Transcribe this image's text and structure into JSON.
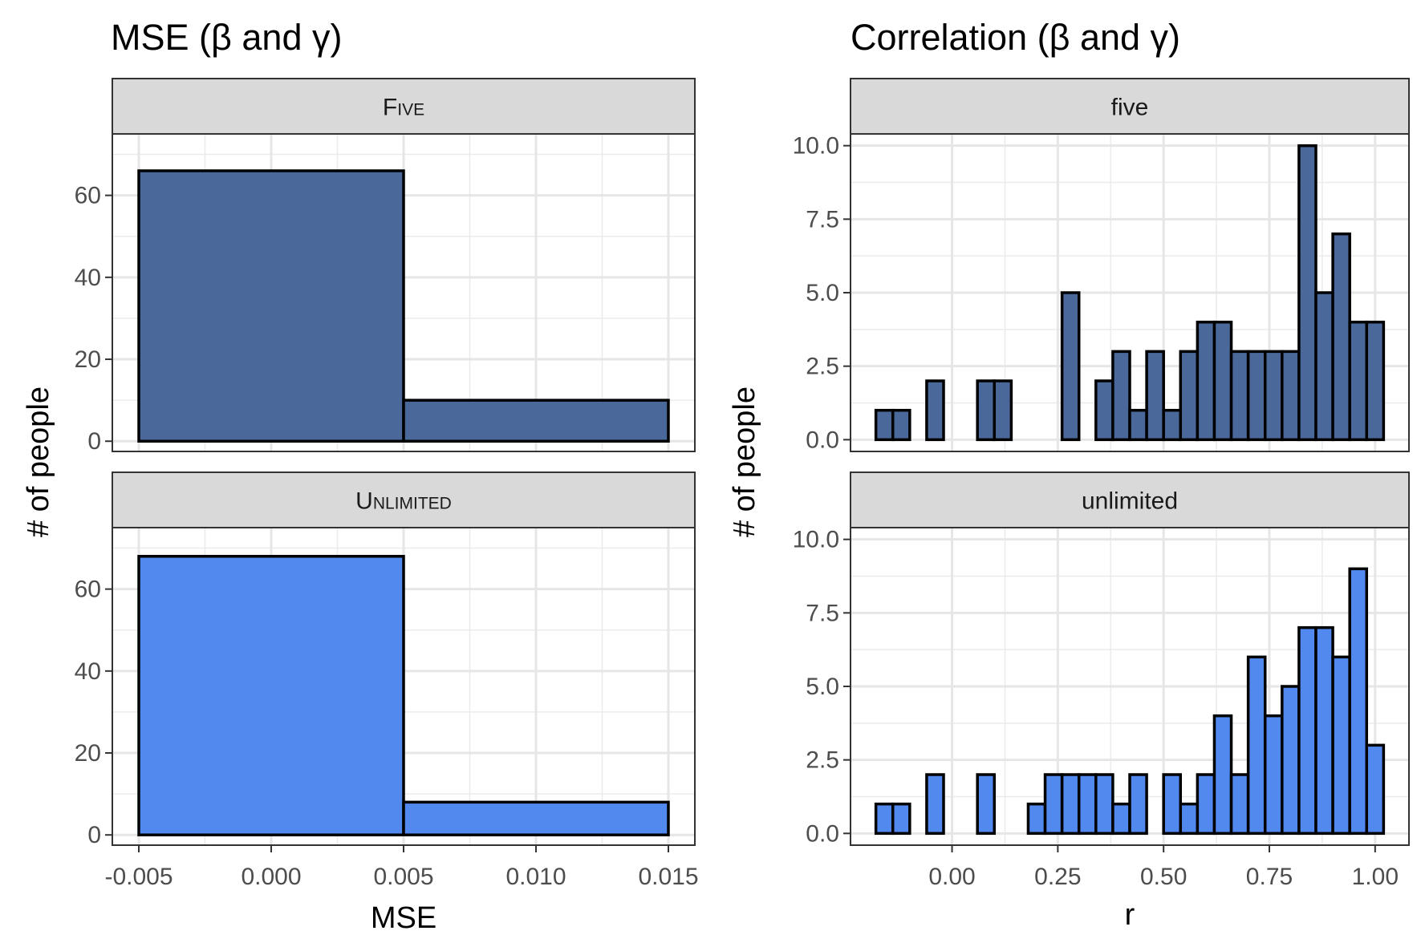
{
  "chart_data": [
    {
      "type": "bar",
      "title": "MSE (β and γ)",
      "xlabel": "MSE",
      "ylabel": "# of people",
      "xlim": [
        -0.006,
        0.016
      ],
      "ylim": [
        -2.5,
        75
      ],
      "x_ticks": [
        -0.005,
        0.0,
        0.005,
        0.01,
        0.015
      ],
      "x_tick_labels": [
        "-0.005",
        "0.000",
        "0.005",
        "0.010",
        "0.015"
      ],
      "y_ticks": [
        0,
        20,
        40,
        60
      ],
      "y_tick_labels": [
        "0",
        "20",
        "40",
        "60"
      ],
      "grid": true,
      "bin_edges": [
        -0.005,
        0.005,
        0.015
      ],
      "facets": [
        {
          "label": "Five",
          "small_caps": true,
          "color": "#4a6899",
          "values": [
            66,
            10
          ]
        },
        {
          "label": "Unlimited",
          "small_caps": true,
          "color": "#5189ee",
          "values": [
            68,
            8
          ]
        }
      ]
    },
    {
      "type": "bar",
      "title": "Correlation (β and γ)",
      "xlabel": "r",
      "ylabel": "# of people",
      "xlim": [
        -0.24,
        1.08
      ],
      "ylim": [
        -0.4,
        10.4
      ],
      "x_ticks": [
        0.0,
        0.25,
        0.5,
        0.75,
        1.0
      ],
      "x_tick_labels": [
        "0.00",
        "0.25",
        "0.50",
        "0.75",
        "1.00"
      ],
      "y_ticks": [
        0,
        2.5,
        5,
        7.5,
        10
      ],
      "y_tick_labels": [
        "0.0",
        "2.5",
        "5.0",
        "7.5",
        "10.0"
      ],
      "grid": true,
      "bin_start": -0.18,
      "bin_width": 0.04,
      "facets": [
        {
          "label": "five",
          "small_caps": false,
          "color": "#4a6899",
          "values": [
            1,
            1,
            0,
            2,
            0,
            0,
            2,
            2,
            0,
            0,
            0,
            5,
            0,
            2,
            3,
            1,
            3,
            1,
            3,
            4,
            4,
            3,
            3,
            3,
            3,
            10,
            5,
            7,
            4,
            4
          ]
        },
        {
          "label": "unlimited",
          "small_caps": false,
          "color": "#5189ee",
          "values": [
            1,
            1,
            0,
            2,
            0,
            0,
            2,
            0,
            0,
            1,
            2,
            2,
            2,
            2,
            1,
            2,
            0,
            2,
            1,
            2,
            4,
            2,
            6,
            4,
            5,
            7,
            7,
            6,
            9,
            3
          ]
        }
      ]
    }
  ]
}
